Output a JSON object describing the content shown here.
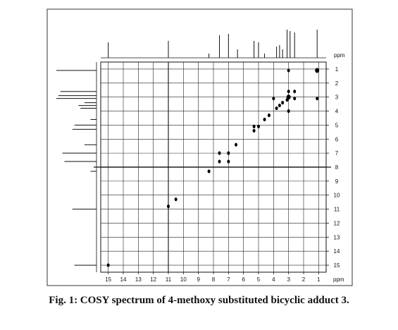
{
  "caption": "Fig. 1: COSY spectrum of 4-methoxy substituted bicyclic adduct 3.",
  "chart_data": {
    "type": "scatter",
    "x_unit": "ppm",
    "y_unit": "ppm",
    "x_range": [
      15.5,
      0.5
    ],
    "y_range": [
      0.5,
      15.5
    ],
    "x_ticks": [
      15,
      14,
      13,
      12,
      11,
      10,
      9,
      8,
      7,
      6,
      5,
      4,
      3,
      2,
      1
    ],
    "y_ticks": [
      1,
      2,
      3,
      4,
      5,
      6,
      7,
      8,
      9,
      10,
      11,
      12,
      13,
      14,
      15
    ],
    "cross_peaks": [
      {
        "x": 15.0,
        "y": 15.0
      },
      {
        "x": 11.0,
        "y": 10.8
      },
      {
        "x": 10.5,
        "y": 10.3
      },
      {
        "x": 8.3,
        "y": 8.3
      },
      {
        "x": 7.6,
        "y": 7.6
      },
      {
        "x": 7.6,
        "y": 7.0
      },
      {
        "x": 7.0,
        "y": 7.0
      },
      {
        "x": 7.0,
        "y": 7.6
      },
      {
        "x": 6.5,
        "y": 6.4
      },
      {
        "x": 5.3,
        "y": 5.1
      },
      {
        "x": 5.3,
        "y": 5.4
      },
      {
        "x": 5.0,
        "y": 5.1
      },
      {
        "x": 4.6,
        "y": 4.6
      },
      {
        "x": 4.3,
        "y": 4.3
      },
      {
        "x": 4.0,
        "y": 3.1
      },
      {
        "x": 3.8,
        "y": 3.8
      },
      {
        "x": 3.6,
        "y": 3.6
      },
      {
        "x": 3.4,
        "y": 3.4
      },
      {
        "x": 3.1,
        "y": 3.2
      },
      {
        "x": 3.0,
        "y": 1.1
      },
      {
        "x": 3.0,
        "y": 2.6
      },
      {
        "x": 3.0,
        "y": 3.0
      },
      {
        "x": 3.0,
        "y": 4.0
      },
      {
        "x": 2.6,
        "y": 2.6
      },
      {
        "x": 2.6,
        "y": 3.1
      },
      {
        "x": 1.1,
        "y": 1.1
      },
      {
        "x": 1.1,
        "y": 3.1
      }
    ],
    "projection_peaks": [
      {
        "ppm": 15.0,
        "h": 0.55
      },
      {
        "ppm": 11.0,
        "h": 0.6
      },
      {
        "ppm": 8.3,
        "h": 0.15
      },
      {
        "ppm": 7.6,
        "h": 0.8
      },
      {
        "ppm": 7.0,
        "h": 0.85
      },
      {
        "ppm": 6.4,
        "h": 0.3
      },
      {
        "ppm": 5.3,
        "h": 0.6
      },
      {
        "ppm": 5.0,
        "h": 0.55
      },
      {
        "ppm": 4.6,
        "h": 0.15
      },
      {
        "ppm": 3.8,
        "h": 0.4
      },
      {
        "ppm": 3.6,
        "h": 0.45
      },
      {
        "ppm": 3.4,
        "h": 0.3
      },
      {
        "ppm": 3.1,
        "h": 1.0
      },
      {
        "ppm": 2.9,
        "h": 0.95
      },
      {
        "ppm": 2.6,
        "h": 0.9
      },
      {
        "ppm": 1.1,
        "h": 1.0
      }
    ],
    "grid": true
  }
}
